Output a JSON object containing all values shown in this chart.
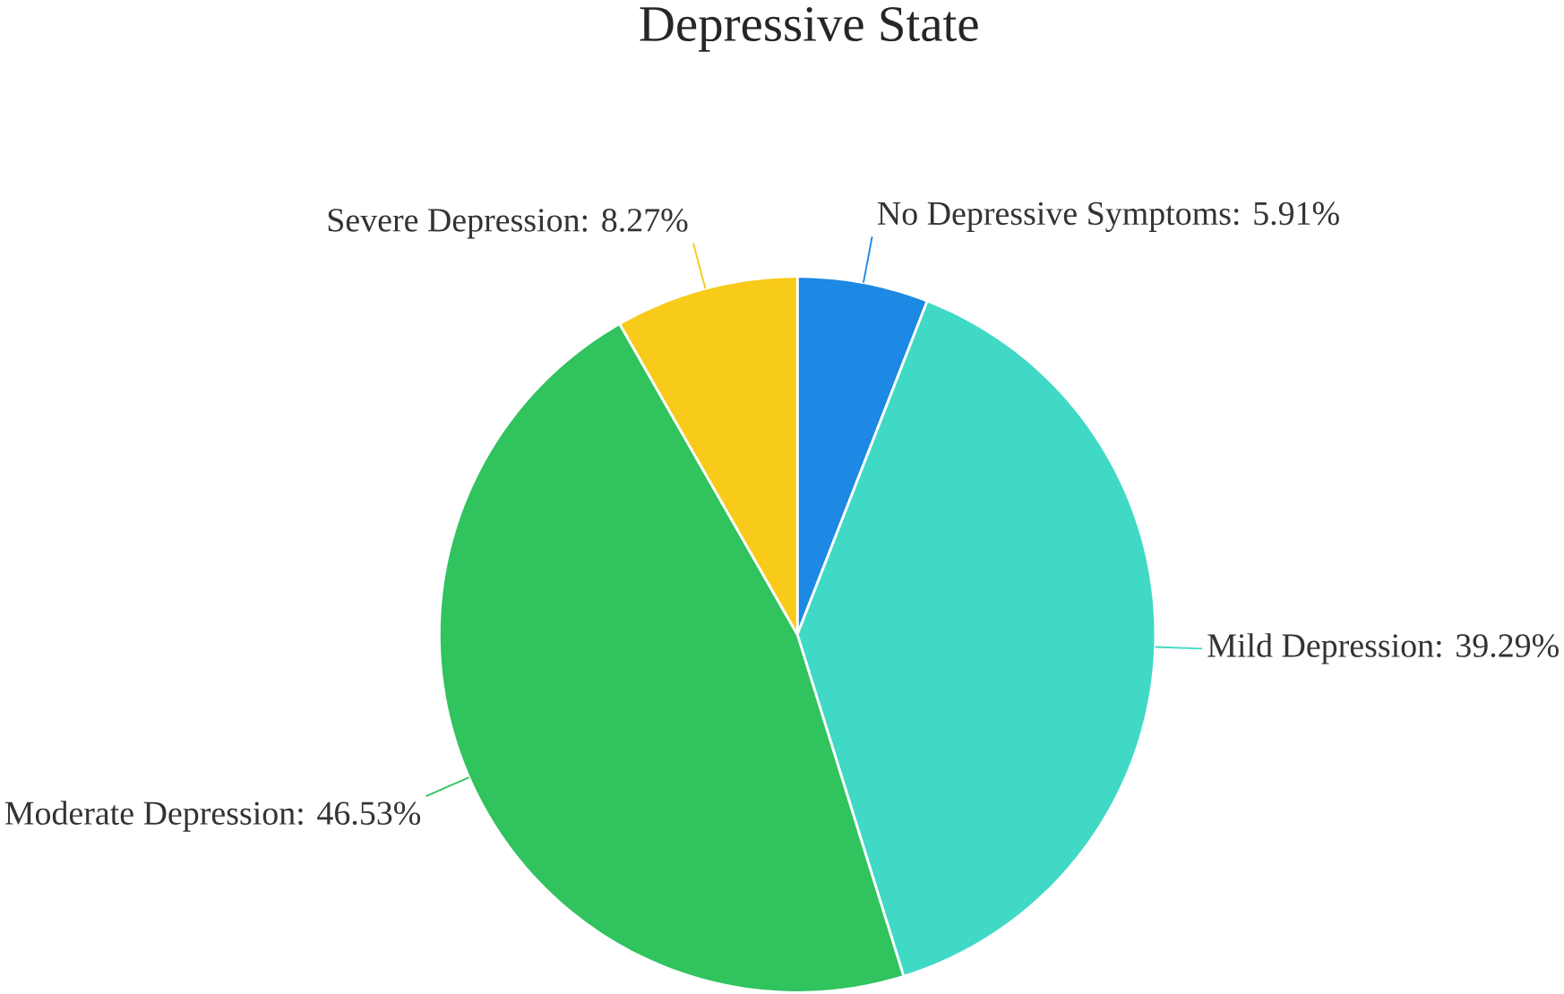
{
  "chart_data": {
    "type": "pie",
    "title": "Depressive State",
    "categories": [
      "No Depressive Symptoms: 5.91%",
      "Mild Depression: 39.29%",
      "Moderate Depression: 46.53%",
      "Severe Depression: 8.27%"
    ],
    "values": [
      5.91,
      39.29,
      46.53,
      8.27
    ],
    "colors": [
      "#1e88e5",
      "#40d9c6",
      "#30c35e",
      "#f8ca1a"
    ]
  }
}
